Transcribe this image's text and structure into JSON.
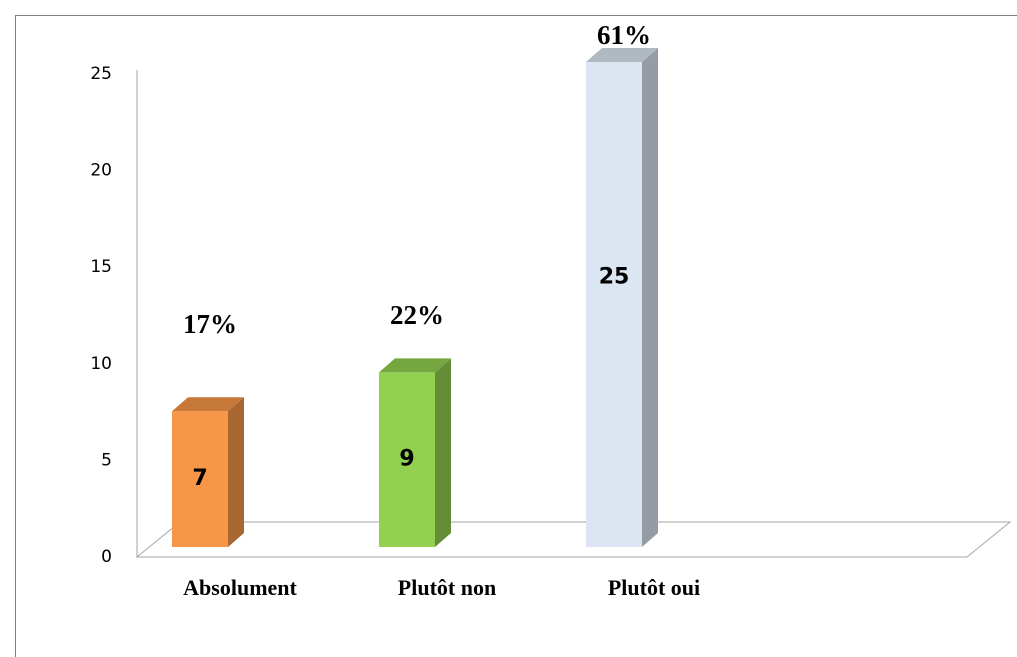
{
  "chart_data": {
    "type": "bar3d",
    "categories": [
      "Absolument",
      "Plutôt non",
      "Plutôt oui"
    ],
    "values": [
      7,
      9,
      25
    ],
    "annotations": [
      "17%",
      "22%",
      "61%"
    ],
    "colors": [
      "#f79646",
      "#92d050",
      "#dce6f2"
    ],
    "ylim": [
      0,
      25
    ],
    "yticks": [
      0,
      5,
      10,
      15,
      20,
      25
    ],
    "grid": false
  }
}
